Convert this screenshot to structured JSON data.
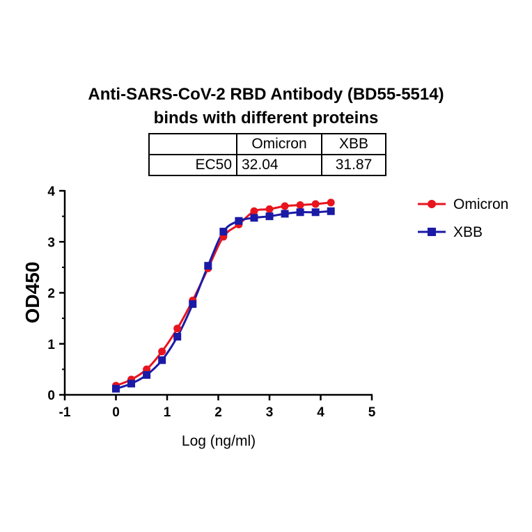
{
  "chart_data": {
    "type": "scatter",
    "title_line1": "Anti-SARS-CoV-2 RBD Antibody (BD55-5514)",
    "title_line2": "binds with different proteins",
    "xlabel": "Log (ng/ml)",
    "ylabel": "OD450",
    "xlim": [
      -1,
      5
    ],
    "ylim": [
      0,
      4
    ],
    "xticks": [
      "-1",
      "0",
      "1",
      "2",
      "3",
      "4",
      "5"
    ],
    "yticks": [
      "0",
      "1",
      "2",
      "3",
      "4"
    ],
    "legend_position": "top-right",
    "table": {
      "columns": [
        "",
        "Omicron",
        "XBB"
      ],
      "rows": [
        {
          "label": "EC50",
          "values": [
            "32.04",
            "31.87"
          ]
        }
      ]
    },
    "series": [
      {
        "name": "Omicron",
        "color": "#e8141e",
        "marker": "circle",
        "x": [
          0,
          0.3,
          0.6,
          0.9,
          1.2,
          1.5,
          1.8,
          2.1,
          2.4,
          2.7,
          3.0,
          3.3,
          3.6,
          3.9,
          4.2
        ],
        "y": [
          0.18,
          0.3,
          0.5,
          0.85,
          1.3,
          1.85,
          2.48,
          3.1,
          3.34,
          3.6,
          3.64,
          3.7,
          3.72,
          3.74,
          3.77
        ]
      },
      {
        "name": "XBB",
        "color": "#1a1aa6",
        "marker": "square",
        "x": [
          0,
          0.3,
          0.6,
          0.9,
          1.2,
          1.5,
          1.8,
          2.1,
          2.4,
          2.7,
          3.0,
          3.3,
          3.6,
          3.9,
          4.2
        ],
        "y": [
          0.12,
          0.22,
          0.39,
          0.68,
          1.14,
          1.78,
          2.53,
          3.2,
          3.41,
          3.47,
          3.5,
          3.55,
          3.58,
          3.58,
          3.6
        ]
      }
    ]
  }
}
